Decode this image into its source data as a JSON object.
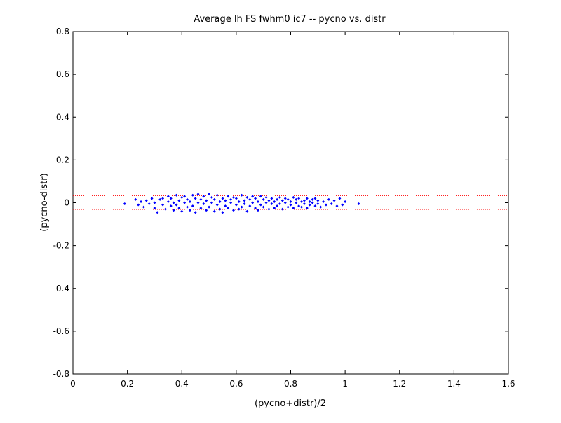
{
  "chart_data": {
    "type": "scatter",
    "title": "Average lh FS fwhm0 ic7 -- pycno vs. distr",
    "xlabel": "(pycno+distr)/2",
    "ylabel": "(pycno-distr)",
    "xlim": [
      0,
      1.6
    ],
    "ylim": [
      -0.8,
      0.8
    ],
    "x_ticks": [
      "0",
      "0.2",
      "0.4",
      "0.6",
      "0.8",
      "1",
      "1.2",
      "1.4",
      "1.6"
    ],
    "y_ticks": [
      "-0.8",
      "-0.6",
      "-0.4",
      "-0.2",
      "0",
      "0.2",
      "0.4",
      "0.6",
      "0.8"
    ],
    "grid": false,
    "marker_color": "#0000ff",
    "reference_line_color": "#ff0000",
    "reference_lines": [
      0.033,
      -0.031
    ],
    "series": [
      {
        "points": [
          [
            0.19,
            -0.005
          ],
          [
            0.23,
            0.015
          ],
          [
            0.24,
            -0.01
          ],
          [
            0.25,
            0.005
          ],
          [
            0.26,
            -0.02
          ],
          [
            0.27,
            0.01
          ],
          [
            0.28,
            -0.005
          ],
          [
            0.29,
            0.02
          ],
          [
            0.3,
            -0.025
          ],
          [
            0.3,
            0.0
          ],
          [
            0.31,
            -0.045
          ],
          [
            0.32,
            0.015
          ],
          [
            0.33,
            -0.01
          ],
          [
            0.33,
            0.02
          ],
          [
            0.34,
            -0.03
          ],
          [
            0.35,
            0.005
          ],
          [
            0.35,
            0.03
          ],
          [
            0.36,
            -0.015
          ],
          [
            0.36,
            0.02
          ],
          [
            0.37,
            0.0
          ],
          [
            0.37,
            -0.035
          ],
          [
            0.38,
            0.035
          ],
          [
            0.38,
            -0.01
          ],
          [
            0.39,
            0.01
          ],
          [
            0.39,
            -0.025
          ],
          [
            0.4,
            0.025
          ],
          [
            0.4,
            -0.04
          ],
          [
            0.41,
            0.0
          ],
          [
            0.41,
            0.03
          ],
          [
            0.42,
            -0.02
          ],
          [
            0.42,
            0.015
          ],
          [
            0.43,
            -0.035
          ],
          [
            0.43,
            0.005
          ],
          [
            0.44,
            0.035
          ],
          [
            0.44,
            -0.015
          ],
          [
            0.45,
            0.02
          ],
          [
            0.45,
            -0.045
          ],
          [
            0.46,
            0.0
          ],
          [
            0.46,
            0.04
          ],
          [
            0.47,
            -0.025
          ],
          [
            0.47,
            0.015
          ],
          [
            0.48,
            -0.005
          ],
          [
            0.48,
            0.03
          ],
          [
            0.49,
            -0.035
          ],
          [
            0.49,
            0.01
          ],
          [
            0.5,
            0.04
          ],
          [
            0.5,
            -0.02
          ],
          [
            0.51,
            0.0
          ],
          [
            0.51,
            0.025
          ],
          [
            0.52,
            -0.04
          ],
          [
            0.52,
            0.015
          ],
          [
            0.53,
            -0.01
          ],
          [
            0.53,
            0.035
          ],
          [
            0.54,
            -0.03
          ],
          [
            0.54,
            0.005
          ],
          [
            0.55,
            0.02
          ],
          [
            0.55,
            -0.045
          ],
          [
            0.56,
            0.01
          ],
          [
            0.56,
            -0.015
          ],
          [
            0.57,
            0.03
          ],
          [
            0.57,
            -0.025
          ],
          [
            0.58,
            0.0
          ],
          [
            0.58,
            0.015
          ],
          [
            0.59,
            -0.035
          ],
          [
            0.59,
            0.025
          ],
          [
            0.6,
            -0.01
          ],
          [
            0.6,
            0.02
          ],
          [
            0.61,
            -0.03
          ],
          [
            0.61,
            0.005
          ],
          [
            0.62,
            0.035
          ],
          [
            0.62,
            -0.02
          ],
          [
            0.63,
            0.01
          ],
          [
            0.63,
            -0.005
          ],
          [
            0.64,
            0.025
          ],
          [
            0.64,
            -0.04
          ],
          [
            0.65,
            0.015
          ],
          [
            0.65,
            -0.015
          ],
          [
            0.66,
            0.03
          ],
          [
            0.66,
            0.0
          ],
          [
            0.67,
            -0.025
          ],
          [
            0.67,
            0.02
          ],
          [
            0.68,
            0.005
          ],
          [
            0.68,
            -0.035
          ],
          [
            0.69,
            0.03
          ],
          [
            0.69,
            -0.01
          ],
          [
            0.7,
            0.015
          ],
          [
            0.7,
            -0.02
          ],
          [
            0.71,
            0.0
          ],
          [
            0.71,
            0.025
          ],
          [
            0.72,
            -0.03
          ],
          [
            0.72,
            0.01
          ],
          [
            0.73,
            -0.005
          ],
          [
            0.73,
            0.02
          ],
          [
            0.74,
            -0.025
          ],
          [
            0.74,
            0.005
          ],
          [
            0.75,
            0.015
          ],
          [
            0.75,
            -0.015
          ],
          [
            0.76,
            0.025
          ],
          [
            0.76,
            -0.005
          ],
          [
            0.77,
            0.01
          ],
          [
            0.77,
            -0.03
          ],
          [
            0.78,
            0.02
          ],
          [
            0.78,
            0.0
          ],
          [
            0.79,
            -0.02
          ],
          [
            0.79,
            0.015
          ],
          [
            0.8,
            0.005
          ],
          [
            0.8,
            -0.01
          ],
          [
            0.81,
            0.025
          ],
          [
            0.81,
            -0.025
          ],
          [
            0.82,
            0.0
          ],
          [
            0.82,
            0.015
          ],
          [
            0.83,
            -0.015
          ],
          [
            0.83,
            0.02
          ],
          [
            0.84,
            0.005
          ],
          [
            0.84,
            -0.02
          ],
          [
            0.85,
            0.01
          ],
          [
            0.85,
            -0.005
          ],
          [
            0.86,
            0.02
          ],
          [
            0.86,
            -0.025
          ],
          [
            0.87,
            0.005
          ],
          [
            0.87,
            -0.01
          ],
          [
            0.88,
            0.015
          ],
          [
            0.88,
            0.0
          ],
          [
            0.89,
            -0.015
          ],
          [
            0.89,
            0.02
          ],
          [
            0.9,
            -0.005
          ],
          [
            0.9,
            0.01
          ],
          [
            0.91,
            -0.02
          ],
          [
            0.92,
            0.005
          ],
          [
            0.93,
            -0.01
          ],
          [
            0.94,
            0.015
          ],
          [
            0.95,
            -0.005
          ],
          [
            0.96,
            0.01
          ],
          [
            0.97,
            -0.015
          ],
          [
            0.98,
            0.02
          ],
          [
            0.99,
            -0.01
          ],
          [
            1.0,
            0.005
          ],
          [
            1.05,
            -0.005
          ]
        ]
      }
    ]
  }
}
